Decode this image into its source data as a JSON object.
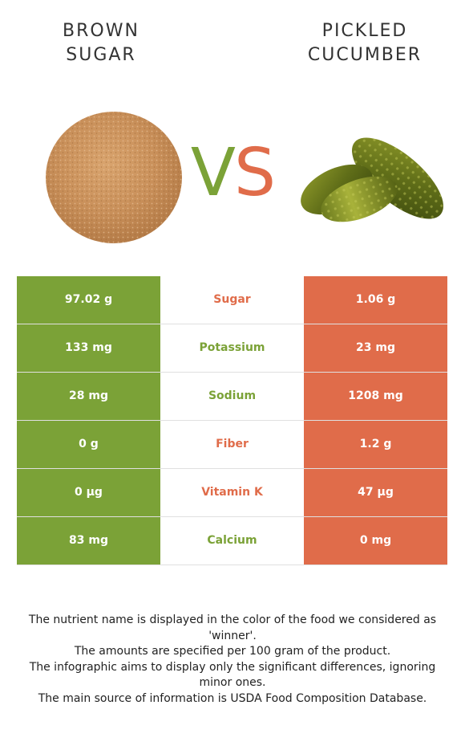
{
  "left_food": {
    "title_lines": [
      "BROWN",
      "SUGAR"
    ]
  },
  "right_food": {
    "title_lines": [
      "PICKLED",
      "CUCUMBER"
    ]
  },
  "vs": {
    "v": "V",
    "s": "S"
  },
  "colors": {
    "winner_left": "#7ba237",
    "winner_right": "#e06c4a",
    "title_text": "#333333"
  },
  "rows": [
    {
      "left": "97.02 g",
      "nutrient": "Sugar",
      "right": "1.06 g",
      "winner": "right"
    },
    {
      "left": "133 mg",
      "nutrient": "Potassium",
      "right": "23 mg",
      "winner": "left"
    },
    {
      "left": "28 mg",
      "nutrient": "Sodium",
      "right": "1208 mg",
      "winner": "left"
    },
    {
      "left": "0 g",
      "nutrient": "Fiber",
      "right": "1.2 g",
      "winner": "right"
    },
    {
      "left": "0 µg",
      "nutrient": "Vitamin K",
      "right": "47 µg",
      "winner": "right"
    },
    {
      "left": "83 mg",
      "nutrient": "Calcium",
      "right": "0 mg",
      "winner": "left"
    }
  ],
  "notes": [
    "The nutrient name is displayed in the color of the food we considered as 'winner'.",
    "The amounts are specified per 100 gram of the product.",
    "The infographic aims to display only the significant differences, ignoring minor ones.",
    "The main source of information is USDA Food Composition Database."
  ]
}
